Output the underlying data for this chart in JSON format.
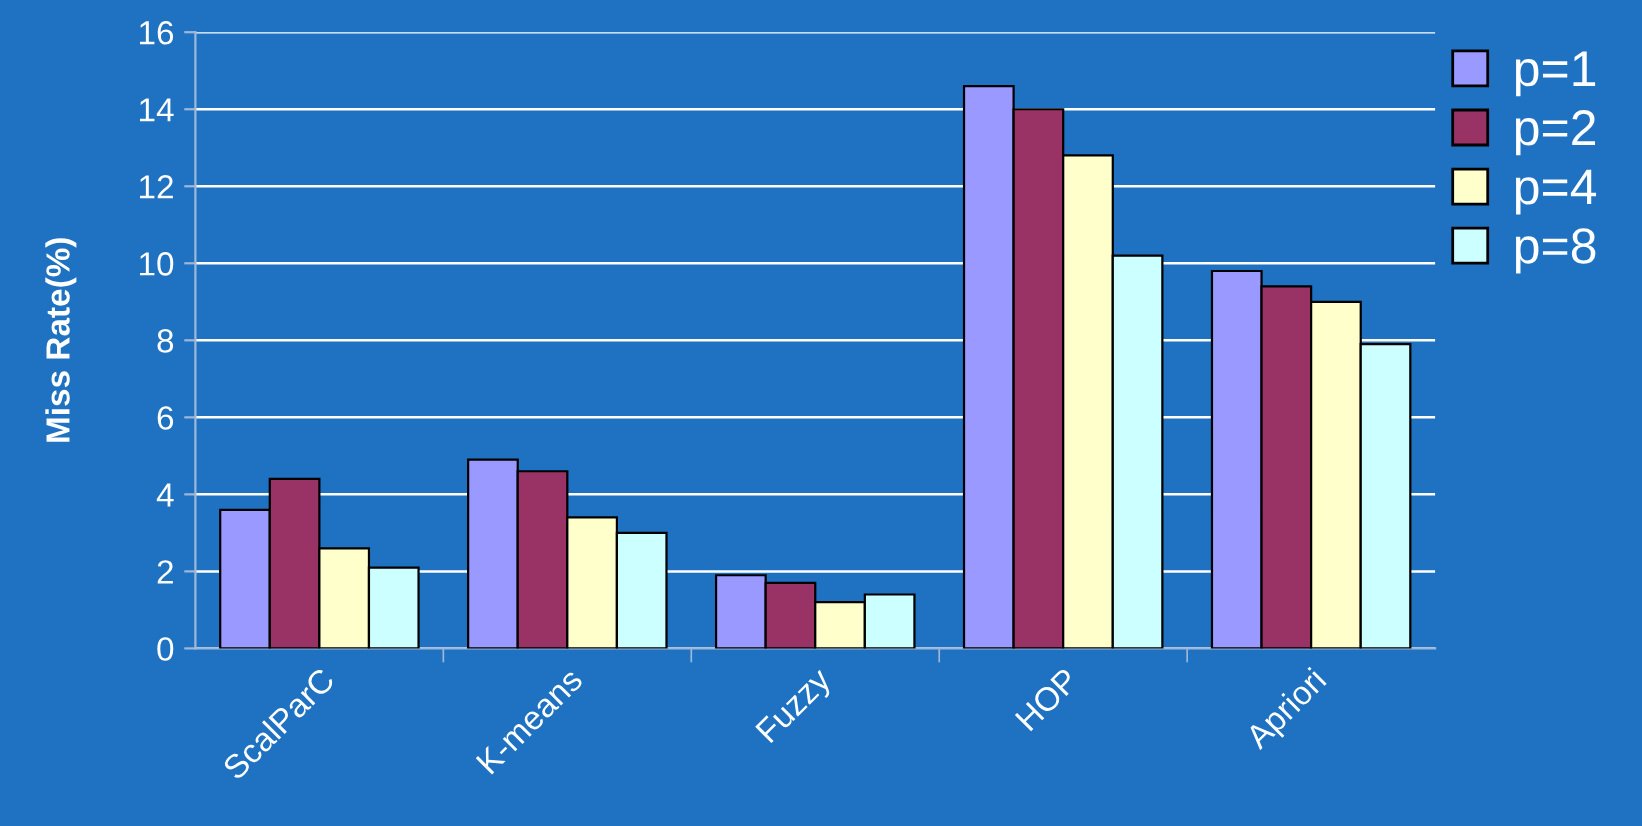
{
  "chart_data": {
    "type": "bar",
    "ylabel": "Miss Rate(%)",
    "categories": [
      "ScalParC",
      "K-means",
      "Fuzzy",
      "HOP",
      "Apriori"
    ],
    "series": [
      {
        "name": "p=1",
        "color": "#9999ff",
        "values": [
          3.6,
          4.9,
          1.9,
          14.6,
          9.8
        ]
      },
      {
        "name": "p=2",
        "color": "#993366",
        "values": [
          4.4,
          4.6,
          1.7,
          14.0,
          9.4
        ]
      },
      {
        "name": "p=4",
        "color": "#ffffcc",
        "values": [
          2.6,
          3.4,
          1.2,
          12.8,
          9.0
        ]
      },
      {
        "name": "p=8",
        "color": "#ccffff",
        "values": [
          2.1,
          3.0,
          1.4,
          10.2,
          7.9
        ]
      }
    ],
    "ylim": [
      0,
      16
    ],
    "yticks": [
      0,
      2,
      4,
      6,
      8,
      10,
      12,
      14,
      16
    ],
    "grid": "y",
    "legend": "right"
  }
}
